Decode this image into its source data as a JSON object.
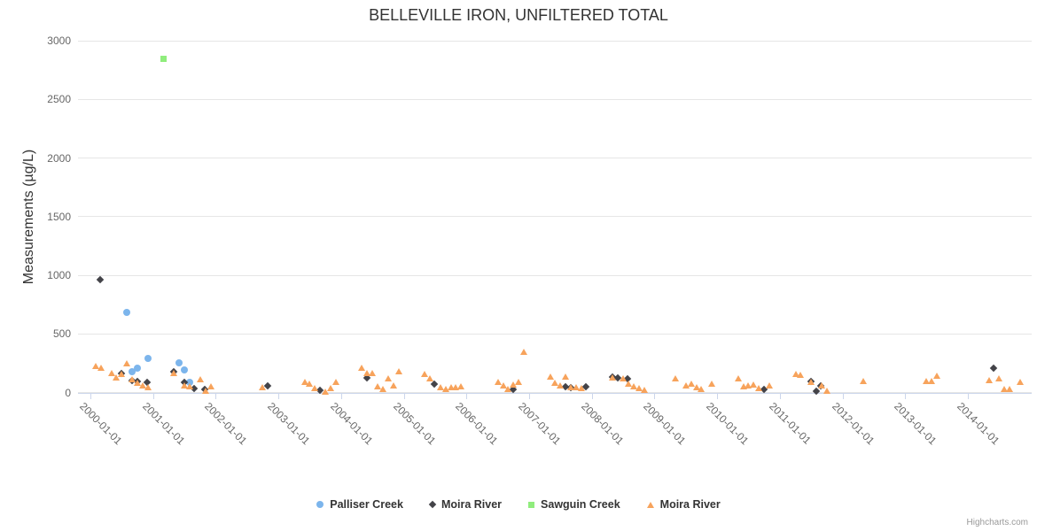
{
  "title": "BELLEVILLE IRON, UNFILTERED TOTAL",
  "credits": "Highcharts.com",
  "chart_data": {
    "type": "scatter",
    "title": "BELLEVILLE IRON, UNFILTERED TOTAL",
    "xlabel": "",
    "ylabel": "Measurements (µg/L)",
    "ylim": [
      0,
      3000
    ],
    "yticks": [
      0,
      500,
      1000,
      1500,
      2000,
      2500,
      3000
    ],
    "xticks": [
      "2000-01-01",
      "2001-01-01",
      "2002-01-01",
      "2003-01-01",
      "2004-01-01",
      "2005-01-01",
      "2006-01-01",
      "2007-01-01",
      "2008-01-01",
      "2009-01-01",
      "2010-01-01",
      "2011-01-01",
      "2012-01-01",
      "2013-01-01",
      "2014-01-01"
    ],
    "grid": true,
    "legend_position": "bottom",
    "series": [
      {
        "name": "Palliser Creek",
        "marker": "circle",
        "color": "#7cb5ec",
        "points": [
          [
            "2000-08",
            680
          ],
          [
            "2000-09",
            180
          ],
          [
            "2000-10",
            205
          ],
          [
            "2000-12",
            290
          ],
          [
            "2001-06",
            255
          ],
          [
            "2001-07",
            195
          ],
          [
            "2001-08",
            90
          ]
        ]
      },
      {
        "name": "Moira River",
        "marker": "diamond",
        "color": "#434348",
        "points": [
          [
            "2000-03",
            960
          ],
          [
            "2000-07",
            158
          ],
          [
            "2000-09",
            98
          ],
          [
            "2000-10",
            88
          ],
          [
            "2000-12",
            80
          ],
          [
            "2001-05",
            170
          ],
          [
            "2001-07",
            80
          ],
          [
            "2001-09",
            30
          ],
          [
            "2001-11",
            23
          ],
          [
            "2002-11",
            55
          ],
          [
            "2003-09",
            17
          ],
          [
            "2004-06",
            123
          ],
          [
            "2005-07",
            68
          ],
          [
            "2006-10",
            23
          ],
          [
            "2007-08",
            43
          ],
          [
            "2007-09",
            38
          ],
          [
            "2007-12",
            48
          ],
          [
            "2008-05",
            130
          ],
          [
            "2008-06",
            123
          ],
          [
            "2008-08",
            113
          ],
          [
            "2010-10",
            23
          ],
          [
            "2011-07",
            93
          ],
          [
            "2011-08",
            10
          ],
          [
            "2011-09",
            50
          ],
          [
            "2014-06",
            206
          ]
        ]
      },
      {
        "name": "Sawguin Creek",
        "marker": "square",
        "color": "#90ed7d",
        "points": [
          [
            "2001-03",
            2845
          ]
        ]
      },
      {
        "name": "Moira River",
        "marker": "triangle",
        "color": "#f7a35c",
        "points": [
          [
            "2000-02",
            225
          ],
          [
            "2000-03",
            215
          ],
          [
            "2000-05",
            164
          ],
          [
            "2000-06",
            130
          ],
          [
            "2000-07",
            158
          ],
          [
            "2000-08",
            251
          ],
          [
            "2000-09",
            113
          ],
          [
            "2000-10",
            80
          ],
          [
            "2000-11",
            62
          ],
          [
            "2000-12",
            48
          ],
          [
            "2001-05",
            164
          ],
          [
            "2001-07",
            58
          ],
          [
            "2001-08",
            55
          ],
          [
            "2001-10",
            110
          ],
          [
            "2001-11",
            17
          ],
          [
            "2001-12",
            55
          ],
          [
            "2002-10",
            43
          ],
          [
            "2003-06",
            93
          ],
          [
            "2003-07",
            73
          ],
          [
            "2003-08",
            35
          ],
          [
            "2003-10",
            10
          ],
          [
            "2003-11",
            35
          ],
          [
            "2003-12",
            93
          ],
          [
            "2004-05",
            214
          ],
          [
            "2004-06",
            168
          ],
          [
            "2004-07",
            163
          ],
          [
            "2004-08",
            53
          ],
          [
            "2004-09",
            28
          ],
          [
            "2004-10",
            118
          ],
          [
            "2004-11",
            62
          ],
          [
            "2004-12",
            181
          ],
          [
            "2005-05",
            156
          ],
          [
            "2005-06",
            123
          ],
          [
            "2005-08",
            43
          ],
          [
            "2005-09",
            30
          ],
          [
            "2005-10",
            43
          ],
          [
            "2005-11",
            48
          ],
          [
            "2005-12",
            55
          ],
          [
            "2006-07",
            93
          ],
          [
            "2006-08",
            62
          ],
          [
            "2006-09",
            30
          ],
          [
            "2006-10",
            68
          ],
          [
            "2006-11",
            88
          ],
          [
            "2006-12",
            345
          ],
          [
            "2007-05",
            138
          ],
          [
            "2007-06",
            80
          ],
          [
            "2007-07",
            62
          ],
          [
            "2007-08",
            138
          ],
          [
            "2007-09",
            48
          ],
          [
            "2007-10",
            43
          ],
          [
            "2007-11",
            38
          ],
          [
            "2008-05",
            130
          ],
          [
            "2008-07",
            118
          ],
          [
            "2008-08",
            73
          ],
          [
            "2008-09",
            55
          ],
          [
            "2008-10",
            38
          ],
          [
            "2008-11",
            23
          ],
          [
            "2009-05",
            118
          ],
          [
            "2009-07",
            62
          ],
          [
            "2009-08",
            73
          ],
          [
            "2009-09",
            48
          ],
          [
            "2009-10",
            30
          ],
          [
            "2009-12",
            73
          ],
          [
            "2010-05",
            118
          ],
          [
            "2010-06",
            55
          ],
          [
            "2010-07",
            60
          ],
          [
            "2010-08",
            68
          ],
          [
            "2010-09",
            38
          ],
          [
            "2010-11",
            62
          ],
          [
            "2011-04",
            160
          ],
          [
            "2011-05",
            150
          ],
          [
            "2011-07",
            93
          ],
          [
            "2011-09",
            60
          ],
          [
            "2011-10",
            17
          ],
          [
            "2012-05",
            98
          ],
          [
            "2013-05",
            100
          ],
          [
            "2013-06",
            100
          ],
          [
            "2013-07",
            143
          ],
          [
            "2014-05",
            106
          ],
          [
            "2014-07",
            123
          ],
          [
            "2014-08",
            30
          ],
          [
            "2014-09",
            30
          ],
          [
            "2014-11",
            93
          ]
        ]
      }
    ],
    "colors": {
      "grid": "#e6e6e6",
      "axis_line": "#ccd6eb",
      "axis_label": "#666666",
      "title": "#333333",
      "credits": "#999999"
    }
  }
}
